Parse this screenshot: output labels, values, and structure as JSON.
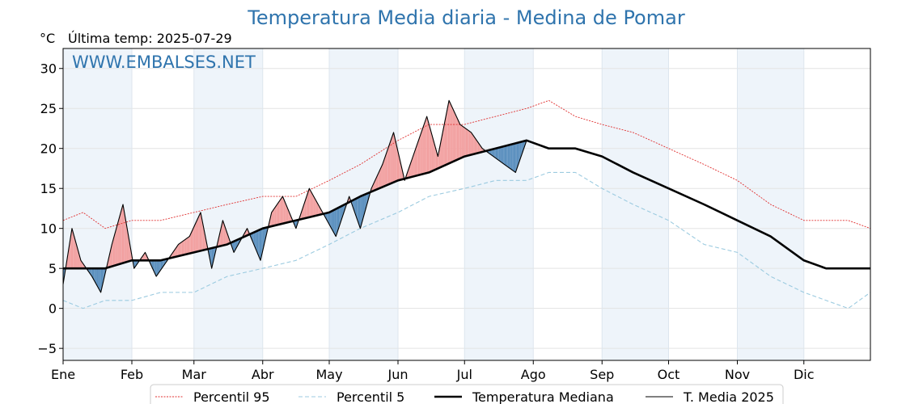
{
  "title": "Temperatura Media diaria - Medina de Pomar",
  "unit": "°C",
  "last_temp": "Última temp: 2025-07-29",
  "watermark": "WWW.EMBALSES.NET",
  "colors": {
    "p95": "#e03030",
    "p5": "#9ccbe0",
    "median": "#000000",
    "t2025": "#000000",
    "above": "#f2a0a0",
    "below": "#5a8fbe",
    "band": "#eef4fa"
  },
  "chart_data": {
    "type": "line",
    "ylim": [
      -6.5,
      32.5
    ],
    "yticks": [
      -5,
      0,
      5,
      10,
      15,
      20,
      25,
      30
    ],
    "months": [
      "Ene",
      "Feb",
      "Mar",
      "Abr",
      "May",
      "Jun",
      "Jul",
      "Ago",
      "Sep",
      "Oct",
      "Nov",
      "Dic"
    ],
    "month_start_days": [
      1,
      32,
      60,
      91,
      121,
      152,
      182,
      213,
      244,
      274,
      305,
      335
    ],
    "x_range_days": [
      1,
      365
    ],
    "grid": true,
    "legend_position": "bottom",
    "series": [
      {
        "name": "Percentil 95",
        "style": "dotted-red",
        "x": [
          1,
          10,
          20,
          32,
          45,
          60,
          75,
          91,
          106,
          121,
          135,
          152,
          166,
          182,
          196,
          210,
          220,
          232,
          244,
          258,
          274,
          290,
          305,
          320,
          335,
          345,
          355,
          365
        ],
        "values": [
          11,
          12,
          10,
          11,
          11,
          12,
          13,
          14,
          14,
          16,
          18,
          21,
          23,
          23,
          24,
          25,
          26,
          24,
          23,
          22,
          20,
          18,
          16,
          13,
          11,
          11,
          11,
          10
        ]
      },
      {
        "name": "Percentil 5",
        "style": "dashed-lightblue",
        "x": [
          1,
          10,
          20,
          32,
          45,
          60,
          75,
          91,
          106,
          121,
          135,
          152,
          166,
          182,
          196,
          210,
          220,
          232,
          244,
          258,
          274,
          290,
          305,
          320,
          335,
          345,
          355,
          365
        ],
        "values": [
          1,
          0,
          1,
          1,
          2,
          2,
          4,
          5,
          6,
          8,
          10,
          12,
          14,
          15,
          16,
          16,
          17,
          17,
          15,
          13,
          11,
          8,
          7,
          4,
          2,
          1,
          0,
          2
        ]
      },
      {
        "name": "Temperatura Mediana",
        "style": "thick-black",
        "x": [
          1,
          10,
          20,
          32,
          45,
          60,
          75,
          91,
          106,
          121,
          135,
          152,
          166,
          182,
          196,
          210,
          220,
          232,
          244,
          258,
          274,
          290,
          305,
          320,
          335,
          345,
          355,
          365
        ],
        "values": [
          5,
          5,
          5,
          6,
          6,
          7,
          8,
          10,
          11,
          12,
          14,
          16,
          17,
          19,
          20,
          21,
          20,
          20,
          19,
          17,
          15,
          13,
          11,
          9,
          6,
          5,
          5,
          5
        ]
      },
      {
        "name": "T. Media 2025",
        "style": "thin-black",
        "x": [
          1,
          5,
          9,
          14,
          18,
          23,
          28,
          33,
          38,
          43,
          48,
          53,
          58,
          63,
          68,
          73,
          78,
          84,
          90,
          95,
          100,
          106,
          112,
          118,
          124,
          130,
          135,
          140,
          145,
          150,
          155,
          160,
          165,
          170,
          175,
          180,
          185,
          190,
          195,
          200,
          205,
          210
        ],
        "values": [
          3,
          10,
          6,
          4,
          2,
          8,
          13,
          5,
          7,
          4,
          6,
          8,
          9,
          12,
          5,
          11,
          7,
          10,
          6,
          12,
          14,
          10,
          15,
          12,
          9,
          14,
          10,
          15,
          18,
          22,
          16,
          20,
          24,
          19,
          26,
          23,
          22,
          20,
          19,
          18,
          17,
          21
        ]
      }
    ]
  },
  "legend": [
    {
      "label": "Percentil 95"
    },
    {
      "label": "Percentil 5"
    },
    {
      "label": "Temperatura Mediana"
    },
    {
      "label": "T. Media 2025"
    }
  ]
}
